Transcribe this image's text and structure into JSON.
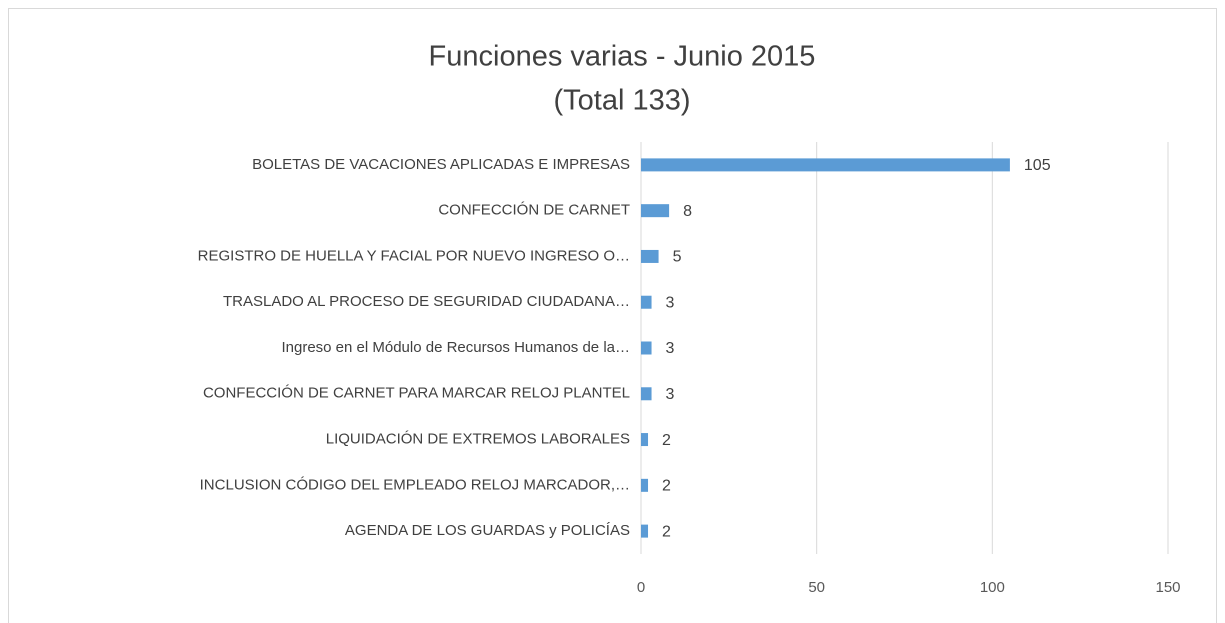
{
  "chart_data": {
    "type": "bar",
    "orientation": "horizontal",
    "title": "Funciones varias - Junio 2015",
    "subtitle": "(Total 133)",
    "categories": [
      "BOLETAS DE VACACIONES APLICADAS E IMPRESAS",
      "CONFECCIÓN DE CARNET",
      "REGISTRO DE HUELLA Y FACIAL POR NUEVO INGRESO O…",
      "TRASLADO AL  PROCESO DE SEGURIDAD CIUDADANA…",
      "Ingreso en el Módulo de Recursos Humanos de la…",
      "CONFECCIÓN DE CARNET PARA MARCAR RELOJ PLANTEL",
      "LIQUIDACIÓN DE EXTREMOS LABORALES",
      "INCLUSION CÓDIGO DEL EMPLEADO RELOJ MARCADOR,…",
      "AGENDA DE LOS GUARDAS y  POLICÍAS"
    ],
    "values": [
      105,
      8,
      5,
      3,
      3,
      3,
      2,
      2,
      2
    ],
    "color": "#5b9bd5",
    "xlim": [
      0,
      150
    ],
    "xticks": [
      0,
      50,
      100,
      150
    ],
    "grid": true
  }
}
